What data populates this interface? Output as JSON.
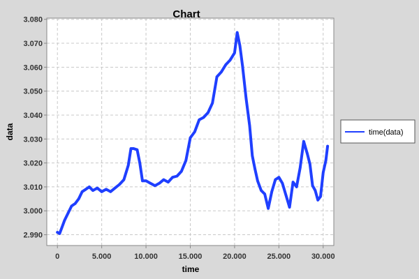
{
  "chart_data": {
    "type": "line",
    "title": "Chart",
    "xlabel": "time",
    "ylabel": "data",
    "xlim": [
      -1200,
      31200
    ],
    "ylim": [
      2.9855,
      3.0805
    ],
    "x_ticks": [
      0,
      5000,
      10000,
      15000,
      20000,
      25000,
      30000
    ],
    "x_tick_labels": [
      "0",
      "5.000",
      "10.000",
      "15.000",
      "20.000",
      "25.000",
      "30.000"
    ],
    "y_ticks": [
      2.99,
      3.0,
      3.01,
      3.02,
      3.03,
      3.04,
      3.05,
      3.06,
      3.07,
      3.08
    ],
    "y_tick_labels": [
      "2.990",
      "3.000",
      "3.010",
      "3.020",
      "3.030",
      "3.040",
      "3.050",
      "3.060",
      "3.070",
      "3.080"
    ],
    "grid": true,
    "legend_position": "right",
    "colors": {
      "series": "#1f3fff",
      "plot_bg": "#ffffff",
      "page_bg": "#d9d9d9",
      "grid": "#c8c8c8"
    },
    "series": [
      {
        "name": "time(data)",
        "x": [
          0,
          250,
          500,
          800,
          1200,
          1600,
          2000,
          2400,
          2800,
          3200,
          3600,
          4000,
          4500,
          5000,
          5500,
          6000,
          6500,
          7000,
          7500,
          8000,
          8300,
          8600,
          9000,
          9300,
          9600,
          10000,
          10500,
          11000,
          11500,
          12000,
          12500,
          13000,
          13500,
          14000,
          14500,
          15000,
          15500,
          16000,
          16500,
          17000,
          17500,
          18000,
          18500,
          19000,
          19500,
          20000,
          20300,
          20600,
          20900,
          21300,
          21700,
          22000,
          22300,
          22600,
          23000,
          23400,
          23800,
          24200,
          24600,
          25000,
          25400,
          25800,
          26200,
          26600,
          27000,
          27400,
          27800,
          28200,
          28500,
          28800,
          29100,
          29400,
          29700,
          30000,
          30300,
          30500
        ],
        "y": [
          2.991,
          2.9905,
          2.993,
          2.996,
          2.999,
          3.002,
          3.003,
          3.005,
          3.008,
          3.009,
          3.01,
          3.0085,
          3.0095,
          3.008,
          3.009,
          3.008,
          3.0095,
          3.011,
          3.013,
          3.019,
          3.026,
          3.026,
          3.0255,
          3.02,
          3.0125,
          3.0125,
          3.0115,
          3.0105,
          3.0115,
          3.013,
          3.012,
          3.014,
          3.0145,
          3.0165,
          3.021,
          3.0305,
          3.033,
          3.038,
          3.039,
          3.041,
          3.045,
          3.056,
          3.058,
          3.061,
          3.063,
          3.066,
          3.0745,
          3.069,
          3.0605,
          3.047,
          3.0355,
          3.023,
          3.0175,
          3.0125,
          3.0085,
          3.007,
          3.001,
          3.008,
          3.013,
          3.014,
          3.0115,
          3.0065,
          3.0015,
          3.012,
          3.01,
          3.018,
          3.029,
          3.024,
          3.0195,
          3.0105,
          3.0085,
          3.0045,
          3.006,
          3.016,
          3.021,
          3.027
        ]
      }
    ]
  }
}
